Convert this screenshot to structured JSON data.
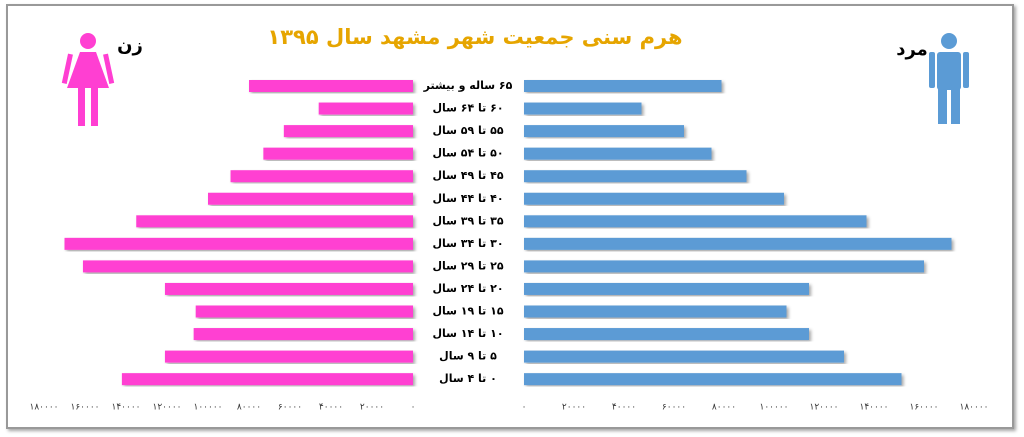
{
  "chart_data": {
    "type": "pyramid",
    "title": "هرم سنی جمعیت شهر مشهد سال ۱۳۹۵",
    "categories": [
      "۶۵ ساله و بیشتر",
      "۶۰ تا ۶۴ سال",
      "۵۵ تا ۵۹ سال",
      "۵۰ تا ۵۴ سال",
      "۴۵ تا ۴۹ سال",
      "۴۰ تا ۴۴ سال",
      "۳۵ تا ۳۹ سال",
      "۳۰ تا ۳۴ سال",
      "۲۵ تا ۲۹ سال",
      "۲۰ تا ۲۴ سال",
      "۱۵ تا ۱۹ سال",
      "۱۰ تا ۱۴ سال",
      "۵ تا ۹ سال",
      "۰ تا ۴ سال"
    ],
    "series": [
      {
        "name": "زن",
        "color": "#ff3fd2",
        "values": [
          80000,
          46000,
          63000,
          73000,
          89000,
          100000,
          135000,
          170000,
          161000,
          121000,
          106000,
          107000,
          121000,
          142000
        ]
      },
      {
        "name": "مرد",
        "color": "#5b9bd5",
        "values": [
          79000,
          47000,
          64000,
          75000,
          89000,
          104000,
          137000,
          171000,
          160000,
          114000,
          105000,
          114000,
          128000,
          151000
        ]
      }
    ],
    "xlim": [
      0,
      180000
    ],
    "xticks": [
      {
        "value": 0,
        "label": "۰"
      },
      {
        "value": 20000,
        "label": "۲۰۰۰۰"
      },
      {
        "value": 40000,
        "label": "۴۰۰۰۰"
      },
      {
        "value": 60000,
        "label": "۶۰۰۰۰"
      },
      {
        "value": 80000,
        "label": "۸۰۰۰۰"
      },
      {
        "value": 100000,
        "label": "۱۰۰۰۰۰"
      },
      {
        "value": 120000,
        "label": "۱۲۰۰۰۰"
      },
      {
        "value": 140000,
        "label": "۱۴۰۰۰۰"
      },
      {
        "value": 160000,
        "label": "۱۶۰۰۰۰"
      },
      {
        "value": 180000,
        "label": "۱۸۰۰۰۰"
      }
    ]
  }
}
